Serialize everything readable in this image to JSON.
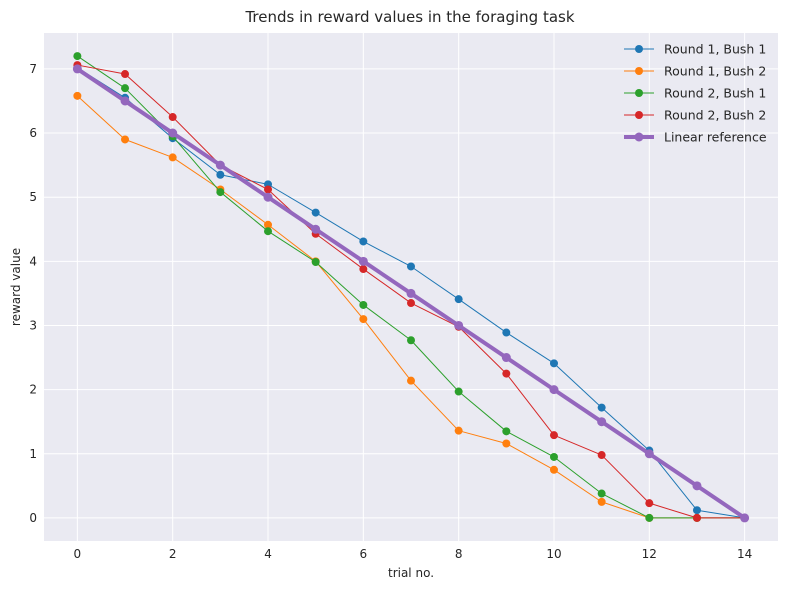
{
  "chart_data": {
    "type": "line",
    "title": "Trends in reward values in the foraging task",
    "xlabel": "trial no.",
    "ylabel": "reward value",
    "xlim": [
      -0.7,
      14.7
    ],
    "ylim": [
      -0.36,
      7.56
    ],
    "xticks": [
      0,
      2,
      4,
      6,
      8,
      10,
      12,
      14
    ],
    "yticks": [
      0,
      1,
      2,
      3,
      4,
      5,
      6,
      7
    ],
    "grid": true,
    "legend_position": "top-right",
    "x": [
      0,
      1,
      2,
      3,
      4,
      5,
      6,
      7,
      8,
      9,
      10,
      11,
      12,
      13,
      14
    ],
    "series": [
      {
        "name": "Round 1, Bush 1",
        "color": "#1f77b4",
        "marker": "circle",
        "values": [
          7.02,
          6.55,
          5.92,
          5.35,
          5.2,
          4.76,
          4.31,
          3.92,
          3.41,
          2.89,
          2.41,
          1.72,
          1.05,
          0.12,
          0.0
        ]
      },
      {
        "name": "Round 1, Bush 2",
        "color": "#ff7f0e",
        "marker": "circle",
        "values": [
          6.58,
          5.9,
          5.62,
          5.12,
          4.57,
          4.0,
          3.1,
          2.14,
          1.36,
          1.16,
          0.75,
          0.25,
          0.0,
          0.0,
          0.0
        ]
      },
      {
        "name": "Round 2, Bush 1",
        "color": "#2ca02c",
        "marker": "circle",
        "values": [
          7.2,
          6.7,
          5.95,
          5.08,
          4.47,
          3.99,
          3.32,
          2.77,
          1.97,
          1.35,
          0.95,
          0.38,
          0.0,
          0.0,
          0.0
        ]
      },
      {
        "name": "Round 2, Bush 2",
        "color": "#d62728",
        "marker": "circle",
        "values": [
          7.06,
          6.92,
          6.25,
          5.5,
          5.12,
          4.43,
          3.88,
          3.35,
          2.98,
          2.25,
          1.29,
          0.98,
          0.23,
          0.0,
          0.0
        ]
      },
      {
        "name": "Linear reference",
        "color": "#9467bd",
        "marker": "circle",
        "thick": true,
        "values": [
          7.0,
          6.5,
          6.0,
          5.5,
          5.0,
          4.5,
          4.0,
          3.5,
          3.0,
          2.5,
          2.0,
          1.5,
          1.0,
          0.5,
          0.0
        ]
      }
    ]
  }
}
